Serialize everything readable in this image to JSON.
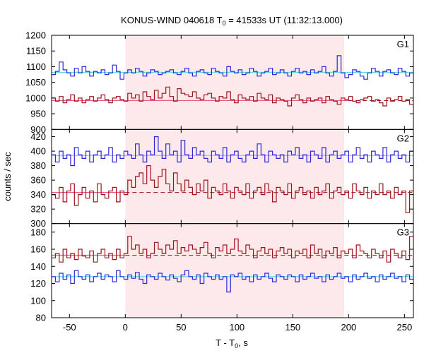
{
  "chart_data": {
    "type": "line",
    "title": {
      "prefix": "KONUS-WIND 040618 T",
      "sub": "0",
      "suffix": " = 41533s UT (11:32:13.000)"
    },
    "xlabel": {
      "prefix": "T - T",
      "sub": "0",
      "suffix": ", s"
    },
    "ylabel": "counts / sec",
    "xlim": [
      -66,
      258
    ],
    "x_ticks": [
      -50,
      0,
      50,
      100,
      150,
      200,
      250
    ],
    "highlight_interval": [
      0,
      196
    ],
    "colors": {
      "blue_series": "#2a2ad8",
      "red_series": "#a0141c",
      "blue_background": "#5fd7e0",
      "red_background": "#e65a82",
      "highlight": "#fde8ec"
    },
    "panels": [
      {
        "name": "G1",
        "ylim": [
          900,
          1200
        ],
        "y_ticks": [
          900,
          950,
          1000,
          1050,
          1100,
          1150,
          1200
        ],
        "blue_background_level": 1082,
        "red_background_level": 992,
        "red_background_dashed_from": 200,
        "series_blue": [
          1075,
          1085,
          1115,
          1090,
          1080,
          1070,
          1095,
          1080,
          1100,
          1085,
          1070,
          1085,
          1080,
          1090,
          1075,
          1080,
          1105,
          1085,
          1060,
          1080,
          1090,
          1080,
          1095,
          1085,
          1070,
          1080,
          1090,
          1085,
          1075,
          1080,
          1085,
          1090,
          1080,
          1075,
          1085,
          1095,
          1080,
          1070,
          1085,
          1090,
          1080,
          1075,
          1095,
          1085,
          1080,
          1070,
          1100,
          1085,
          1080,
          1090,
          1075,
          1080,
          1095,
          1085,
          1070,
          1080,
          1085,
          1095,
          1075,
          1080,
          1090,
          1080,
          1070,
          1085,
          1095,
          1080,
          1085,
          1075,
          1090,
          1080,
          1085,
          1100,
          1080,
          1070,
          1085,
          1135,
          1080,
          1065,
          1075,
          1090,
          1085,
          1070,
          1060,
          1080,
          1095,
          1085,
          1070,
          1085,
          1090,
          1080,
          1075,
          1095,
          1085,
          1070,
          1080
        ],
        "series_red": [
          1000,
          990,
          1005,
          985,
          995,
          1010,
          990,
          1000,
          985,
          995,
          1005,
          990,
          1000,
          1010,
          995,
          985,
          1000,
          1005,
          995,
          990,
          1015,
          1000,
          1010,
          990,
          1020,
          1005,
          995,
          1025,
          1000,
          1015,
          1035,
          1005,
          990,
          1030,
          1015,
          1010,
          1005,
          1020,
          1000,
          995,
          1010,
          1015,
          1000,
          990,
          1005,
          1000,
          1020,
          995,
          985,
          1010,
          1000,
          995,
          1005,
          990,
          1015,
          1000,
          995,
          1010,
          985,
          1000,
          995,
          990,
          975,
          1000,
          1010,
          995,
          985,
          1000,
          990,
          995,
          1000,
          985,
          1005,
          995,
          990,
          980,
          1000,
          995,
          1005,
          990,
          985,
          995,
          1000,
          1005,
          990,
          995,
          985,
          975,
          1000,
          990,
          995,
          1005,
          990,
          995,
          980
        ]
      },
      {
        "name": "G2",
        "ylim": [
          300,
          430
        ],
        "y_ticks": [
          300,
          320,
          340,
          360,
          380,
          400,
          420
        ],
        "blue_background_level": 394,
        "red_background_level": 343,
        "red_background_dashed_from": 0,
        "series_blue": [
          395,
          385,
          400,
          390,
          395,
          380,
          405,
          395,
          390,
          400,
          385,
          395,
          400,
          390,
          395,
          405,
          385,
          395,
          390,
          400,
          395,
          390,
          410,
          395,
          385,
          400,
          395,
          420,
          400,
          390,
          410,
          395,
          400,
          385,
          415,
          395,
          390,
          405,
          395,
          400,
          390,
          385,
          400,
          395,
          390,
          405,
          385,
          395,
          400,
          390,
          385,
          395,
          400,
          390,
          410,
          395,
          385,
          400,
          395,
          390,
          395,
          385,
          400,
          395,
          405,
          390,
          395,
          385,
          400,
          395,
          390,
          405,
          385,
          395,
          400,
          390,
          395,
          400,
          385,
          395,
          405,
          390,
          395,
          385,
          400,
          395,
          390,
          405,
          385,
          395,
          400,
          390,
          395,
          385,
          400
        ],
        "series_red": [
          340,
          335,
          350,
          330,
          345,
          355,
          325,
          340,
          350,
          335,
          345,
          330,
          355,
          340,
          335,
          345,
          350,
          330,
          345,
          340,
          360,
          350,
          365,
          370,
          355,
          380,
          360,
          350,
          365,
          375,
          355,
          345,
          370,
          355,
          345,
          360,
          350,
          340,
          355,
          345,
          360,
          335,
          350,
          345,
          340,
          355,
          345,
          335,
          350,
          345,
          340,
          355,
          335,
          345,
          350,
          340,
          355,
          345,
          330,
          350,
          345,
          340,
          355,
          335,
          345,
          350,
          340,
          345,
          335,
          350,
          340,
          345,
          355,
          335,
          345,
          350,
          340,
          345,
          335,
          355,
          345,
          340,
          350,
          335,
          345,
          340,
          355,
          340,
          345,
          335,
          350,
          340,
          345,
          315,
          345
        ]
      },
      {
        "name": "G3",
        "ylim": [
          80,
          190
        ],
        "y_ticks": [
          80,
          100,
          120,
          140,
          160,
          180
        ],
        "blue_background_level": 128,
        "red_background_level": 153,
        "red_background_dashed_from": 0,
        "series_blue": [
          128,
          122,
          132,
          125,
          130,
          120,
          135,
          128,
          125,
          130,
          122,
          128,
          132,
          125,
          130,
          128,
          122,
          135,
          128,
          125,
          130,
          126,
          133,
          125,
          120,
          130,
          128,
          125,
          132,
          128,
          124,
          130,
          126,
          122,
          130,
          135,
          128,
          125,
          130,
          120,
          132,
          128,
          125,
          130,
          125,
          128,
          110,
          130,
          128,
          132,
          125,
          128,
          122,
          130,
          125,
          128,
          132,
          126,
          122,
          130,
          128,
          125,
          130,
          128,
          122,
          130,
          125,
          128,
          132,
          126,
          128,
          122,
          130,
          125,
          128,
          132,
          126,
          128,
          122,
          130,
          125,
          128,
          132,
          126,
          128,
          122,
          130,
          125,
          128,
          132,
          126,
          128,
          122,
          130,
          125
        ],
        "series_red": [
          150,
          155,
          145,
          160,
          150,
          155,
          148,
          160,
          152,
          150,
          158,
          145,
          155,
          160,
          150,
          155,
          148,
          160,
          150,
          155,
          175,
          160,
          165,
          155,
          160,
          150,
          155,
          168,
          160,
          155,
          165,
          160,
          170,
          155,
          162,
          158,
          165,
          160,
          155,
          162,
          168,
          155,
          150,
          162,
          158,
          165,
          155,
          160,
          172,
          158,
          155,
          165,
          160,
          150,
          158,
          162,
          155,
          160,
          150,
          158,
          162,
          155,
          160,
          150,
          158,
          155,
          160,
          150,
          165,
          155,
          160,
          150,
          158,
          155,
          162,
          150,
          158,
          155,
          160,
          150,
          165,
          158,
          155,
          150,
          160,
          155,
          150,
          158,
          145,
          160,
          155,
          150,
          158,
          148,
          175
        ]
      }
    ]
  }
}
